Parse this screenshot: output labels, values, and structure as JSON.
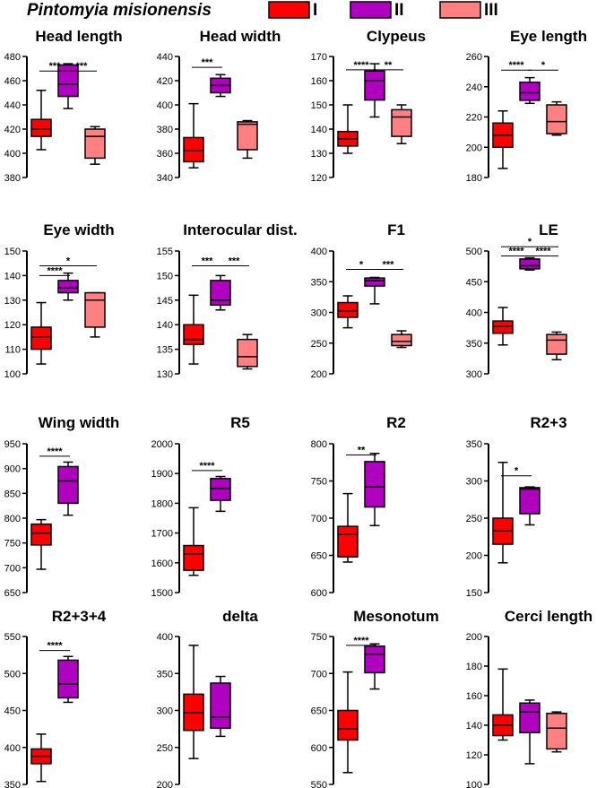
{
  "legend": {
    "title": "Pintomyia misionensis",
    "groups": [
      {
        "label": "I",
        "color": "#ff0000"
      },
      {
        "label": "II",
        "color": "#b000c0"
      },
      {
        "label": "III",
        "color": "#ff8080"
      }
    ]
  },
  "chart_data": [
    {
      "type": "box",
      "title": "Head  length",
      "ylim": [
        380,
        480
      ],
      "yticks": [
        380,
        400,
        420,
        440,
        460,
        480
      ],
      "boxes": [
        {
          "group": "I",
          "min": 403,
          "q1": 414,
          "median": 420,
          "q3": 428,
          "max": 452
        },
        {
          "group": "II",
          "min": 437,
          "q1": 447,
          "median": 457,
          "q3": 473,
          "max": 474
        },
        {
          "group": "III",
          "min": 391,
          "q1": 396,
          "median": 414,
          "q3": 420,
          "max": 422
        }
      ],
      "significance": [
        {
          "from": 0,
          "to": 1,
          "label": "***",
          "y": 468
        },
        {
          "from": 1,
          "to": 2,
          "label": "***",
          "y": 468
        }
      ]
    },
    {
      "type": "box",
      "title": "Head width",
      "ylim": [
        340,
        440
      ],
      "yticks": [
        340,
        360,
        380,
        400,
        420,
        440
      ],
      "boxes": [
        {
          "group": "I",
          "min": 348,
          "q1": 353,
          "median": 362,
          "q3": 373,
          "max": 401
        },
        {
          "group": "II",
          "min": 407,
          "q1": 410,
          "median": 416,
          "q3": 422,
          "max": 425
        }
      ],
      "significance": [
        {
          "from": 0,
          "to": 1,
          "label": "***",
          "y": 431
        }
      ],
      "extra_boxes": [
        {
          "group": "III",
          "min": 356,
          "q1": 363,
          "median": 384,
          "q3": 386,
          "max": 387
        }
      ]
    },
    {
      "type": "box",
      "title": "Clypeus",
      "ylim": [
        120,
        170
      ],
      "yticks": [
        120,
        130,
        140,
        150,
        160,
        170
      ],
      "boxes": [
        {
          "group": "I",
          "min": 130,
          "q1": 133,
          "median": 136,
          "q3": 139,
          "max": 150
        },
        {
          "group": "II",
          "min": 145,
          "q1": 152,
          "median": 160,
          "q3": 164,
          "max": 167
        },
        {
          "group": "III",
          "min": 134,
          "q1": 137,
          "median": 145,
          "q3": 148,
          "max": 150
        }
      ],
      "significance": [
        {
          "from": 0,
          "to": 1,
          "label": "****",
          "y": 164.5
        },
        {
          "from": 1,
          "to": 2,
          "label": "**",
          "y": 164.5
        }
      ]
    },
    {
      "type": "box",
      "title": "Eye length",
      "ylim": [
        180,
        260
      ],
      "yticks": [
        180,
        200,
        220,
        240,
        260
      ],
      "boxes": [
        {
          "group": "I",
          "min": 186,
          "q1": 200,
          "median": 208,
          "q3": 216,
          "max": 224
        },
        {
          "group": "II",
          "min": 229,
          "q1": 231,
          "median": 236,
          "q3": 243,
          "max": 246
        },
        {
          "group": "III",
          "min": 208,
          "q1": 209,
          "median": 217,
          "q3": 228,
          "max": 230
        }
      ],
      "significance": [
        {
          "from": 0,
          "to": 1,
          "label": "****",
          "y": 251
        },
        {
          "from": 1,
          "to": 2,
          "label": "*",
          "y": 251
        }
      ]
    },
    {
      "type": "box",
      "title": "Eye width",
      "ylim": [
        100,
        150
      ],
      "yticks": [
        100,
        110,
        120,
        130,
        140,
        150
      ],
      "boxes": [
        {
          "group": "I",
          "min": 104,
          "q1": 110,
          "median": 115,
          "q3": 119,
          "max": 129
        },
        {
          "group": "II",
          "min": 130,
          "q1": 133,
          "median": 135,
          "q3": 138,
          "max": 141
        },
        {
          "group": "III",
          "min": 115,
          "q1": 119,
          "median": 130,
          "q3": 133,
          "max": 133
        }
      ],
      "significance": [
        {
          "from": 0,
          "to": 1,
          "label": "****",
          "y": 140
        },
        {
          "from": 0,
          "to": 2,
          "label": "*",
          "y": 144
        }
      ]
    },
    {
      "type": "box",
      "title": "Interocular dist.",
      "ylim": [
        130,
        155
      ],
      "yticks": [
        130,
        135,
        140,
        145,
        150,
        155
      ],
      "boxes": [
        {
          "group": "I",
          "min": 132,
          "q1": 136,
          "median": 137,
          "q3": 140,
          "max": 146
        },
        {
          "group": "II",
          "min": 143,
          "q1": 144,
          "median": 145,
          "q3": 149,
          "max": 150
        },
        {
          "group": "III",
          "min": 131,
          "q1": 131.5,
          "median": 133.5,
          "q3": 137,
          "max": 138
        }
      ],
      "significance": [
        {
          "from": 0,
          "to": 1,
          "label": "***",
          "y": 152
        },
        {
          "from": 1,
          "to": 2,
          "label": "***",
          "y": 152
        }
      ]
    },
    {
      "type": "box",
      "title": "F1",
      "ylim": [
        200,
        400
      ],
      "yticks": [
        200,
        250,
        300,
        350,
        400
      ],
      "boxes": [
        {
          "group": "I",
          "min": 275,
          "q1": 292,
          "median": 302,
          "q3": 316,
          "max": 327
        },
        {
          "group": "II",
          "min": 314,
          "q1": 343,
          "median": 352,
          "q3": 356,
          "max": 357
        },
        {
          "group": "III",
          "min": 243,
          "q1": 246,
          "median": 253,
          "q3": 264,
          "max": 270
        }
      ],
      "significance": [
        {
          "from": 0,
          "to": 1,
          "label": "*",
          "y": 370
        },
        {
          "from": 1,
          "to": 2,
          "label": "***",
          "y": 370
        }
      ]
    },
    {
      "type": "box",
      "title": "LE",
      "ylim": [
        300,
        500
      ],
      "yticks": [
        300,
        350,
        400,
        450,
        500
      ],
      "boxes": [
        {
          "group": "I",
          "min": 347,
          "q1": 366,
          "median": 377,
          "q3": 386,
          "max": 408
        },
        {
          "group": "II",
          "min": 469,
          "q1": 471,
          "median": 476,
          "q3": 487,
          "max": 489
        },
        {
          "group": "III",
          "min": 323,
          "q1": 332,
          "median": 355,
          "q3": 364,
          "max": 368
        }
      ],
      "significance": [
        {
          "from": 0,
          "to": 1,
          "label": "****",
          "y": 492
        },
        {
          "from": 1,
          "to": 2,
          "label": "****",
          "y": 492
        },
        {
          "from": 0,
          "to": 2,
          "label": "*",
          "y": 507
        }
      ]
    },
    {
      "type": "box",
      "title": "Wing width",
      "ylim": [
        650,
        950
      ],
      "yticks": [
        650,
        700,
        750,
        800,
        850,
        900,
        950
      ],
      "boxes": [
        {
          "group": "I",
          "min": 697,
          "q1": 746,
          "median": 770,
          "q3": 788,
          "max": 797
        },
        {
          "group": "II",
          "min": 806,
          "q1": 830,
          "median": 875,
          "q3": 904,
          "max": 913
        }
      ],
      "significance": [
        {
          "from": 0,
          "to": 1,
          "label": "****",
          "y": 925
        }
      ]
    },
    {
      "type": "box",
      "title": "R5",
      "ylim": [
        1500,
        2000
      ],
      "yticks": [
        1500,
        1600,
        1700,
        1800,
        1900,
        2000
      ],
      "boxes": [
        {
          "group": "I",
          "min": 1558,
          "q1": 1575,
          "median": 1630,
          "q3": 1658,
          "max": 1785
        },
        {
          "group": "II",
          "min": 1773,
          "q1": 1810,
          "median": 1850,
          "q3": 1883,
          "max": 1890
        }
      ],
      "significance": [
        {
          "from": 0,
          "to": 1,
          "label": "****",
          "y": 1910
        }
      ]
    },
    {
      "type": "box",
      "title": "R2",
      "ylim": [
        600,
        800
      ],
      "yticks": [
        600,
        650,
        700,
        750,
        800
      ],
      "boxes": [
        {
          "group": "I",
          "min": 641,
          "q1": 648,
          "median": 678,
          "q3": 689,
          "max": 733
        },
        {
          "group": "II",
          "min": 690,
          "q1": 715,
          "median": 742,
          "q3": 776,
          "max": 787
        }
      ],
      "significance": [
        {
          "from": 0,
          "to": 1,
          "label": "**",
          "y": 785
        }
      ]
    },
    {
      "type": "box",
      "title": "R2+3",
      "ylim": [
        150,
        350
      ],
      "yticks": [
        150,
        200,
        250,
        300,
        350
      ],
      "boxes": [
        {
          "group": "I",
          "min": 190,
          "q1": 215,
          "median": 233,
          "q3": 250,
          "max": 325
        },
        {
          "group": "II",
          "min": 241,
          "q1": 256,
          "median": 289,
          "q3": 291,
          "max": 292
        }
      ],
      "significance": [
        {
          "from": 0,
          "to": 1,
          "label": "*",
          "y": 307
        }
      ]
    },
    {
      "type": "box",
      "title": "R2+3+4",
      "ylim": [
        350,
        550
      ],
      "yticks": [
        350,
        400,
        450,
        500,
        550
      ],
      "boxes": [
        {
          "group": "I",
          "min": 354,
          "q1": 378,
          "median": 388,
          "q3": 398,
          "max": 418
        },
        {
          "group": "II",
          "min": 461,
          "q1": 467,
          "median": 486,
          "q3": 518,
          "max": 523
        }
      ],
      "significance": [
        {
          "from": 0,
          "to": 1,
          "label": "****",
          "y": 531
        }
      ]
    },
    {
      "type": "box",
      "title": "delta",
      "ylim": [
        200,
        400
      ],
      "yticks": [
        200,
        250,
        300,
        350,
        400
      ],
      "boxes": [
        {
          "group": "I",
          "min": 235,
          "q1": 273,
          "median": 297,
          "q3": 322,
          "max": 388
        },
        {
          "group": "II",
          "min": 265,
          "q1": 276,
          "median": 291,
          "q3": 337,
          "max": 346
        }
      ],
      "significance": []
    },
    {
      "type": "box",
      "title": "Mesonotum",
      "ylim": [
        550,
        750
      ],
      "yticks": [
        550,
        600,
        650,
        700,
        750
      ],
      "boxes": [
        {
          "group": "I",
          "min": 566,
          "q1": 610,
          "median": 625,
          "q3": 650,
          "max": 702
        },
        {
          "group": "II",
          "min": 679,
          "q1": 701,
          "median": 726,
          "q3": 737,
          "max": 740
        }
      ],
      "significance": [
        {
          "from": 0,
          "to": 1,
          "label": "****",
          "y": 738
        }
      ]
    },
    {
      "type": "box",
      "title": "Cerci length",
      "ylim": [
        100,
        200
      ],
      "yticks": [
        100,
        120,
        140,
        160,
        180,
        200
      ],
      "boxes": [
        {
          "group": "I",
          "min": 130,
          "q1": 133,
          "median": 140,
          "q3": 147,
          "max": 178
        },
        {
          "group": "II",
          "min": 114,
          "q1": 135,
          "median": 149,
          "q3": 155,
          "max": 157
        },
        {
          "group": "III",
          "min": 122,
          "q1": 124,
          "median": 138,
          "q3": 148,
          "max": 149
        }
      ],
      "significance": []
    }
  ]
}
